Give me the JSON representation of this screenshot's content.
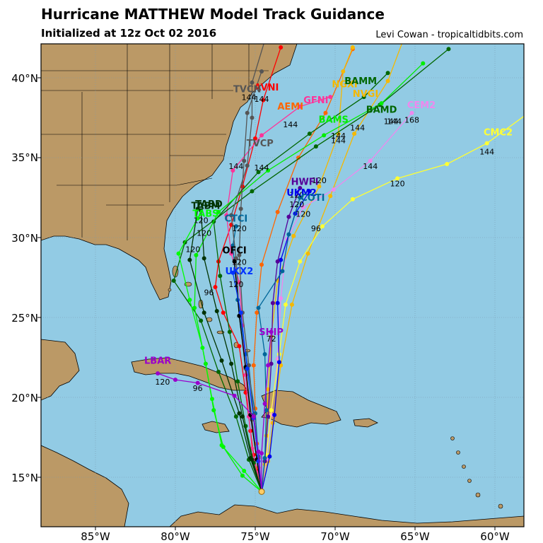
{
  "header": {
    "title": "Hurricane MATTHEW Model Track Guidance",
    "subtitle": "Initialized at 12z Oct 02 2016",
    "credit": "Levi Cowan - tropicaltidbits.com"
  },
  "axes": {
    "lat_labels": [
      "40°N",
      "35°N",
      "30°N",
      "25°N",
      "20°N",
      "15°N"
    ],
    "lon_labels": [
      "85°W",
      "80°W",
      "75°W",
      "70°W",
      "65°W",
      "60°W"
    ]
  },
  "colors": {
    "ocean": "#92cbe4",
    "land": "#bb9966",
    "grid": "#7a9ab0"
  },
  "models": [
    {
      "name": "AVNI",
      "color": "#ff0000",
      "points": [
        [
          -74.6,
          14.1
        ],
        [
          -74.9,
          15.4
        ],
        [
          -75.1,
          16.4
        ],
        [
          -75.3,
          17.9
        ],
        [
          -75.6,
          20.3
        ],
        [
          -76.0,
          23.2
        ],
        [
          -77.0,
          25.3
        ],
        [
          -77.5,
          26.9
        ],
        [
          -77.3,
          28.5
        ],
        [
          -76.5,
          30.8
        ],
        [
          -75.8,
          33.2
        ],
        [
          -75.0,
          36.2
        ],
        [
          -74.5,
          38.6
        ],
        [
          -73.4,
          41.9
        ]
      ],
      "label_at": [
        -74.3,
        39.2
      ],
      "markers": [
        [
          "144",
          -74.6,
          38.5
        ]
      ]
    },
    {
      "name": "AEMI",
      "color": "#ff6600",
      "points": [
        [
          -74.6,
          14.1
        ],
        [
          -74.8,
          15.6
        ],
        [
          -74.9,
          17.1
        ],
        [
          -75.0,
          19.3
        ],
        [
          -75.1,
          22.0
        ],
        [
          -74.9,
          25.3
        ],
        [
          -74.6,
          28.3
        ],
        [
          -73.6,
          31.6
        ],
        [
          -72.3,
          35.0
        ],
        [
          -70.6,
          37.8
        ],
        [
          -68.9,
          41.8
        ]
      ],
      "label_at": [
        -72.8,
        38.0
      ],
      "markers": [
        [
          "144",
          -72.8,
          36.9
        ]
      ]
    },
    {
      "name": "GFNI",
      "color": "#ff3399",
      "points": [
        [
          -74.6,
          14.1
        ],
        [
          -74.9,
          15.3
        ],
        [
          -75.2,
          16.8
        ],
        [
          -75.4,
          18.8
        ],
        [
          -75.6,
          21.4
        ],
        [
          -75.8,
          24.5
        ],
        [
          -76.0,
          27.2
        ],
        [
          -76.5,
          29.0
        ],
        [
          -76.8,
          31.4
        ],
        [
          -76.4,
          34.2
        ],
        [
          -74.6,
          36.4
        ],
        [
          -72.2,
          38.2
        ],
        [
          -70.3,
          38.8
        ]
      ],
      "label_at": [
        -71.2,
        38.4
      ],
      "markers": [
        [
          "144",
          -76.2,
          34.3
        ]
      ]
    },
    {
      "name": "NGXI",
      "color": "#f5b800",
      "points": [
        [
          -74.6,
          14.1
        ],
        [
          -74.4,
          15.8
        ],
        [
          -74.3,
          17.6
        ],
        [
          -74.2,
          20.5
        ],
        [
          -74.0,
          23.8
        ],
        [
          -73.6,
          27.3
        ],
        [
          -72.6,
          30.1
        ],
        [
          -71.0,
          33.2
        ],
        [
          -69.8,
          36.5
        ],
        [
          -69.5,
          40.4
        ],
        [
          -68.9,
          41.9
        ]
      ],
      "label_at": [
        -69.4,
        39.4
      ],
      "markers": [
        [
          "144",
          -69.8,
          36.2
        ],
        [
          "120",
          -71.0,
          33.4
        ]
      ]
    },
    {
      "name": "NVGI",
      "color": "#f5b800",
      "points": [
        [
          -74.6,
          14.1
        ],
        [
          -74.2,
          16.0
        ],
        [
          -73.9,
          18.4
        ],
        [
          -73.4,
          22.0
        ],
        [
          -72.7,
          25.8
        ],
        [
          -71.7,
          29.0
        ],
        [
          -70.3,
          32.6
        ],
        [
          -68.8,
          36.5
        ],
        [
          -66.7,
          39.8
        ],
        [
          -65.5,
          43.0
        ]
      ],
      "label_at": [
        -68.1,
        38.8
      ],
      "markers": [
        [
          "144",
          -68.6,
          36.7
        ]
      ]
    },
    {
      "name": "BAMM",
      "color": "#006600",
      "points": [
        [
          -74.6,
          14.1
        ],
        [
          -75.1,
          15.9
        ],
        [
          -75.6,
          18.2
        ],
        [
          -76.1,
          21.0
        ],
        [
          -76.6,
          24.1
        ],
        [
          -77.2,
          27.6
        ],
        [
          -77.6,
          31.0
        ],
        [
          -74.8,
          34.1
        ],
        [
          -71.6,
          36.5
        ],
        [
          -68.2,
          38.8
        ],
        [
          -66.7,
          40.3
        ]
      ],
      "label_at": [
        -68.4,
        39.6
      ],
      "markers": [
        [
          "144",
          -66.3,
          37.1
        ]
      ]
    },
    {
      "name": "BAMD",
      "color": "#006600",
      "points": [
        [
          -74.6,
          14.1
        ],
        [
          -75.4,
          16.1
        ],
        [
          -76.2,
          18.8
        ],
        [
          -77.3,
          21.6
        ],
        [
          -78.4,
          24.8
        ],
        [
          -80.1,
          27.3
        ],
        [
          -79.4,
          29.7
        ],
        [
          -75.2,
          32.9
        ],
        [
          -71.2,
          35.7
        ],
        [
          -67.2,
          38.3
        ],
        [
          -62.9,
          41.8
        ]
      ],
      "label_at": [
        -67.1,
        37.8
      ],
      "markers": [
        [
          "144",
          -66.5,
          37.1
        ]
      ]
    },
    {
      "name": "BAMS",
      "color": "#00ee00",
      "points": [
        [
          -74.6,
          14.1
        ],
        [
          -75.8,
          15.1
        ],
        [
          -77.0,
          16.9
        ],
        [
          -77.6,
          19.2
        ],
        [
          -78.1,
          22.1
        ],
        [
          -78.8,
          25.6
        ],
        [
          -78.7,
          28.9
        ],
        [
          -77.3,
          31.6
        ],
        [
          -74.2,
          34.2
        ],
        [
          -70.7,
          36.4
        ],
        [
          -67.1,
          38.4
        ],
        [
          -64.5,
          40.9
        ]
      ],
      "label_at": [
        -70.1,
        37.2
      ],
      "markers": [
        [
          "144",
          -69.8,
          35.9
        ]
      ]
    },
    {
      "name": "CEM2",
      "color": "#ee88ee",
      "points": [
        [
          -74.6,
          14.1
        ],
        [
          -74.3,
          16.1
        ],
        [
          -74.0,
          18.9
        ],
        [
          -73.6,
          22.4
        ],
        [
          -73.4,
          26.2
        ],
        [
          -73.0,
          29.9
        ],
        [
          -72.0,
          31.9
        ],
        [
          -70.1,
          33.0
        ],
        [
          -67.8,
          34.8
        ],
        [
          -65.2,
          37.8
        ]
      ],
      "label_at": [
        -64.6,
        38.1
      ],
      "markers": [
        [
          "168",
          -65.2,
          37.2
        ],
        [
          "144",
          -67.8,
          34.3
        ]
      ]
    },
    {
      "name": "CMC2",
      "color": "#ffff33",
      "points": [
        [
          -74.6,
          14.1
        ],
        [
          -74.3,
          16.4
        ],
        [
          -74.0,
          19.2
        ],
        [
          -73.5,
          22.7
        ],
        [
          -73.1,
          25.8
        ],
        [
          -72.2,
          28.5
        ],
        [
          -70.8,
          30.7
        ],
        [
          -68.9,
          32.4
        ],
        [
          -66.1,
          33.7
        ],
        [
          -63.0,
          34.6
        ],
        [
          -60.5,
          35.9
        ],
        [
          -57.9,
          37.8
        ]
      ],
      "label_at": [
        -59.8,
        36.4
      ],
      "markers": [
        [
          "144",
          -60.5,
          35.2
        ],
        [
          "120",
          -66.1,
          33.2
        ],
        [
          "96",
          -71.2,
          30.4
        ]
      ]
    },
    {
      "name": "UKM2",
      "color": "#0000ee",
      "points": [
        [
          -74.6,
          14.1
        ],
        [
          -74.1,
          16.3
        ],
        [
          -73.8,
          18.9
        ],
        [
          -73.5,
          22.2
        ],
        [
          -73.6,
          25.9
        ],
        [
          -73.4,
          28.6
        ],
        [
          -72.5,
          31.5
        ],
        [
          -71.6,
          32.9
        ]
      ],
      "label_at": [
        -72.1,
        32.6
      ],
      "markers": [
        [
          "120",
          -72.4,
          31.9
        ]
      ]
    },
    {
      "name": "HWFI",
      "color": "#550099",
      "points": [
        [
          -74.6,
          14.1
        ],
        [
          -74.4,
          16.0
        ],
        [
          -74.2,
          18.8
        ],
        [
          -74.0,
          22.1
        ],
        [
          -73.9,
          25.9
        ],
        [
          -73.6,
          28.5
        ],
        [
          -72.9,
          31.3
        ],
        [
          -72.2,
          33.1
        ]
      ],
      "label_at": [
        -71.9,
        33.3
      ],
      "markers": [
        [
          "120",
          -72.4,
          32.5
        ]
      ]
    },
    {
      "name": "COTI",
      "color": "#006699",
      "points": [
        [
          -74.6,
          14.1
        ],
        [
          -74.4,
          16.2
        ],
        [
          -74.3,
          19.2
        ],
        [
          -74.4,
          22.7
        ],
        [
          -74.8,
          25.6
        ],
        [
          -73.3,
          27.9
        ],
        [
          -72.9,
          30.2
        ],
        [
          -72.2,
          32.5
        ]
      ],
      "label_at": [
        -71.4,
        32.3
      ],
      "markers": [
        [
          "120",
          -72.0,
          31.3
        ]
      ]
    },
    {
      "name": "CTCI",
      "color": "#006699",
      "points": [
        [
          -74.6,
          14.1
        ],
        [
          -74.8,
          16.3
        ],
        [
          -75.0,
          19.0
        ],
        [
          -75.6,
          22.7
        ],
        [
          -76.1,
          26.1
        ],
        [
          -76.4,
          29.5
        ],
        [
          -76.2,
          30.7
        ]
      ],
      "label_at": [
        -76.2,
        31.0
      ],
      "markers": [
        [
          "120",
          -76.0,
          30.4
        ]
      ]
    },
    {
      "name": "TVCP",
      "color": "#555555",
      "points": [
        [
          -74.6,
          14.1
        ],
        [
          -74.9,
          16.1
        ],
        [
          -75.2,
          18.6
        ],
        [
          -75.6,
          21.8
        ],
        [
          -76.0,
          25.1
        ],
        [
          -76.2,
          28.7
        ],
        [
          -76.5,
          31.4
        ],
        [
          -75.5,
          34.5
        ],
        [
          -75.2,
          37.5
        ],
        [
          -75.2,
          39.7
        ],
        [
          -74.2,
          43.0
        ]
      ],
      "label_at": [
        -74.7,
        35.7
      ],
      "markers": [
        [
          "144",
          -74.6,
          34.2
        ]
      ]
    },
    {
      "name": "TVCN",
      "color": "#555555",
      "points": [
        [
          -74.6,
          14.1
        ],
        [
          -74.8,
          16.2
        ],
        [
          -75.1,
          18.9
        ],
        [
          -75.4,
          22.0
        ],
        [
          -75.8,
          25.3
        ],
        [
          -76.0,
          28.9
        ],
        [
          -75.9,
          31.8
        ],
        [
          -75.7,
          34.8
        ],
        [
          -75.5,
          37.8
        ],
        [
          -74.6,
          40.4
        ]
      ],
      "label_at": [
        -75.5,
        39.1
      ],
      "markers": [
        [
          "144",
          -75.4,
          38.6
        ]
      ]
    },
    {
      "name": "OFCI",
      "color": "#000000",
      "points": [
        [
          -74.6,
          14.1
        ],
        [
          -74.9,
          16.1
        ],
        [
          -75.3,
          18.9
        ],
        [
          -75.6,
          21.9
        ],
        [
          -76.0,
          25.1
        ],
        [
          -76.3,
          28.5
        ]
      ],
      "label_at": [
        -76.3,
        29.0
      ],
      "markers": [
        [
          "120",
          -76.0,
          28.3
        ]
      ]
    },
    {
      "name": "UKX2",
      "color": "#0033ff",
      "points": [
        [
          -74.6,
          14.1
        ],
        [
          -74.8,
          16.0
        ],
        [
          -75.1,
          18.7
        ],
        [
          -75.5,
          21.8
        ],
        [
          -75.9,
          25.3
        ],
        [
          -76.4,
          27.8
        ]
      ],
      "label_at": [
        -76.0,
        27.7
      ],
      "markers": [
        [
          "120",
          -76.2,
          26.9
        ]
      ]
    },
    {
      "name": "TABD",
      "color": "#003300",
      "points": [
        [
          -74.6,
          14.1
        ],
        [
          -75.3,
          16.2
        ],
        [
          -76.0,
          19.0
        ],
        [
          -77.1,
          22.3
        ],
        [
          -78.2,
          25.3
        ],
        [
          -79.1,
          28.6
        ],
        [
          -78.6,
          31.8
        ]
      ],
      "label_at": [
        -77.9,
        31.9
      ],
      "markers": [
        [
          "120",
          -78.4,
          30.9
        ]
      ]
    },
    {
      "name": "TABM",
      "color": "#003300",
      "points": [
        [
          -74.6,
          14.1
        ],
        [
          -75.2,
          16.1
        ],
        [
          -75.8,
          18.8
        ],
        [
          -76.5,
          22.1
        ],
        [
          -77.4,
          25.4
        ],
        [
          -78.2,
          28.7
        ],
        [
          -78.4,
          31.7
        ]
      ],
      "label_at": [
        -78.1,
        31.8
      ],
      "markers": [
        [
          "120",
          -78.2,
          30.1
        ]
      ]
    },
    {
      "name": "TABS",
      "color": "#00ff00",
      "points": [
        [
          -74.6,
          14.1
        ],
        [
          -75.7,
          15.4
        ],
        [
          -77.1,
          17.0
        ],
        [
          -77.7,
          19.9
        ],
        [
          -78.3,
          23.1
        ],
        [
          -79.1,
          26.1
        ],
        [
          -79.8,
          29.0
        ],
        [
          -78.6,
          31.2
        ]
      ],
      "label_at": [
        -78.1,
        31.3
      ],
      "markers": [
        [
          "120",
          -78.9,
          29.1
        ],
        [
          "96",
          -77.9,
          26.4
        ]
      ]
    },
    {
      "name": "LBAR",
      "color": "#9900cc",
      "points": [
        [
          -74.6,
          14.1
        ],
        [
          -74.8,
          16.6
        ],
        [
          -75.1,
          18.8
        ],
        [
          -76.3,
          20.1
        ],
        [
          -78.6,
          20.9
        ],
        [
          -80.0,
          21.1
        ],
        [
          -81.1,
          21.5
        ]
      ],
      "label_at": [
        -81.1,
        22.1
      ],
      "markers": [
        [
          "120",
          -80.8,
          20.8
        ],
        [
          "96",
          -78.6,
          20.4
        ]
      ]
    },
    {
      "name": "SHIP",
      "color": "#9900cc",
      "points": [
        [
          -74.6,
          14.1
        ],
        [
          -74.6,
          16.5
        ],
        [
          -74.4,
          19.6
        ],
        [
          -74.2,
          22.0
        ],
        [
          -74.0,
          24.1
        ]
      ],
      "label_at": [
        -74.0,
        23.9
      ],
      "markers": [
        [
          "72",
          -74.0,
          23.5
        ]
      ]
    }
  ]
}
